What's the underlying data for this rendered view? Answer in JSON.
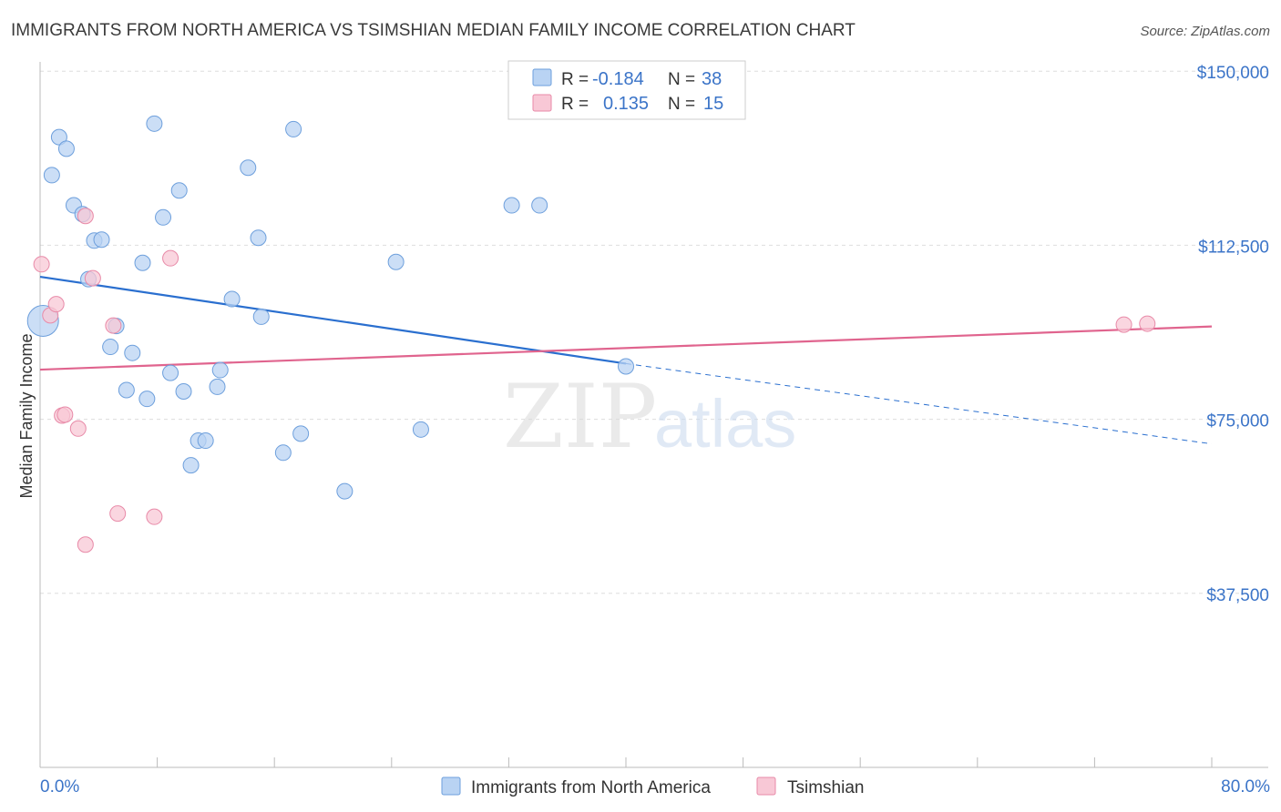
{
  "title": "IMMIGRANTS FROM NORTH AMERICA VS TSIMSHIAN MEDIAN FAMILY INCOME CORRELATION CHART",
  "source": "Source: ZipAtlas.com",
  "watermark": {
    "zip": "ZIP",
    "atlas": "atlas"
  },
  "colors": {
    "blue_fill": "#b9d3f3",
    "blue_stroke": "#6d9fdc",
    "blue_line": "#2a6fcf",
    "pink_fill": "#f8c8d6",
    "pink_stroke": "#e88aa8",
    "pink_line": "#e0648e",
    "tick_text": "#3b74c8",
    "grid": "#dddddd"
  },
  "legend": {
    "rows": [
      {
        "r_label": "R =",
        "r_value": "-0.184",
        "n_label": "N =",
        "n_value": "38"
      },
      {
        "r_label": "R =",
        "r_value": "0.135",
        "n_label": "N =",
        "n_value": "15"
      }
    ],
    "bottom": [
      "Immigrants from North America",
      "Tsimshian"
    ]
  },
  "chart_data": {
    "type": "scatter",
    "title": "IMMIGRANTS FROM NORTH AMERICA VS TSIMSHIAN MEDIAN FAMILY INCOME CORRELATION CHART",
    "xlabel": "",
    "ylabel": "Median Family Income",
    "xlim": [
      0,
      80
    ],
    "ylim": [
      0,
      152000
    ],
    "x_tick_labels": [
      "0.0%",
      "80.0%"
    ],
    "y_ticks": [
      37500,
      75000,
      112500,
      150000
    ],
    "y_tick_labels": [
      "$37,500",
      "$75,000",
      "$112,500",
      "$150,000"
    ],
    "grid": true,
    "legend_position": "top-center",
    "series": [
      {
        "name": "Immigrants from North America",
        "r": -0.184,
        "n": 38,
        "points": [
          {
            "x": 0.2,
            "y": 96200,
            "big": true
          },
          {
            "x": 0.8,
            "y": 127600
          },
          {
            "x": 1.3,
            "y": 135800
          },
          {
            "x": 1.8,
            "y": 133300
          },
          {
            "x": 2.3,
            "y": 121100
          },
          {
            "x": 2.9,
            "y": 119200
          },
          {
            "x": 3.3,
            "y": 105200
          },
          {
            "x": 3.7,
            "y": 113500
          },
          {
            "x": 4.2,
            "y": 113700
          },
          {
            "x": 4.8,
            "y": 90600
          },
          {
            "x": 5.2,
            "y": 95100
          },
          {
            "x": 5.9,
            "y": 81300
          },
          {
            "x": 6.3,
            "y": 89300
          },
          {
            "x": 7.0,
            "y": 108700
          },
          {
            "x": 7.3,
            "y": 79400
          },
          {
            "x": 7.8,
            "y": 138700
          },
          {
            "x": 8.4,
            "y": 118500
          },
          {
            "x": 8.9,
            "y": 85000
          },
          {
            "x": 9.5,
            "y": 124300
          },
          {
            "x": 9.8,
            "y": 81000
          },
          {
            "x": 10.3,
            "y": 65100
          },
          {
            "x": 10.8,
            "y": 70400
          },
          {
            "x": 11.3,
            "y": 70400
          },
          {
            "x": 12.1,
            "y": 82000
          },
          {
            "x": 12.3,
            "y": 85600
          },
          {
            "x": 13.1,
            "y": 100900
          },
          {
            "x": 14.2,
            "y": 129200
          },
          {
            "x": 14.9,
            "y": 114100
          },
          {
            "x": 15.1,
            "y": 97100
          },
          {
            "x": 16.6,
            "y": 67800
          },
          {
            "x": 17.3,
            "y": 137500
          },
          {
            "x": 17.8,
            "y": 71900
          },
          {
            "x": 20.8,
            "y": 59500
          },
          {
            "x": 24.3,
            "y": 108900
          },
          {
            "x": 26.0,
            "y": 72800
          },
          {
            "x": 32.2,
            "y": 121100
          },
          {
            "x": 34.1,
            "y": 121100
          },
          {
            "x": 40.0,
            "y": 86400
          }
        ],
        "trend_solid": [
          [
            0,
            105700
          ],
          [
            40,
            87000
          ]
        ],
        "trend_dashed": [
          [
            40,
            87000
          ],
          [
            80,
            69700
          ]
        ]
      },
      {
        "name": "Tsimshian",
        "r": 0.135,
        "n": 15,
        "points": [
          {
            "x": 0.1,
            "y": 108400
          },
          {
            "x": 0.7,
            "y": 97400
          },
          {
            "x": 1.1,
            "y": 99800
          },
          {
            "x": 1.5,
            "y": 75800
          },
          {
            "x": 1.7,
            "y": 76000
          },
          {
            "x": 2.6,
            "y": 73000
          },
          {
            "x": 3.1,
            "y": 48000
          },
          {
            "x": 3.1,
            "y": 118800
          },
          {
            "x": 3.6,
            "y": 105400
          },
          {
            "x": 5.0,
            "y": 95200
          },
          {
            "x": 5.3,
            "y": 54700
          },
          {
            "x": 7.8,
            "y": 54000
          },
          {
            "x": 8.9,
            "y": 109700
          },
          {
            "x": 74.0,
            "y": 95400
          },
          {
            "x": 75.6,
            "y": 95600
          }
        ],
        "trend_solid": [
          [
            0,
            85700
          ],
          [
            80,
            95000
          ]
        ]
      }
    ]
  }
}
